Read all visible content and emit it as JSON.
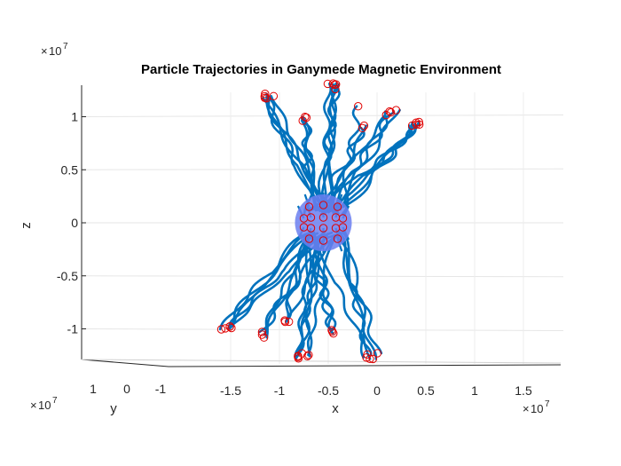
{
  "chart_data": {
    "type": "line",
    "title": "Particle Trajectories in Ganymede Magnetic Environment",
    "xlabel": "x",
    "ylabel": "y",
    "zlabel": "z",
    "view": "3-D, nearly side-on",
    "scale_exponents": {
      "x": "10",
      "x_power": "7",
      "y": "10",
      "y_power": "7",
      "z": "10",
      "z_power": "7"
    },
    "scale_prefix": "×",
    "x_ticks": [
      "-1.5",
      "-1",
      "-0.5",
      "0",
      "0.5",
      "1",
      "1.5"
    ],
    "x_tick_values": [
      -1.5,
      -1,
      -0.5,
      0,
      0.5,
      1,
      1.5
    ],
    "y_ticks": [
      "1",
      "0",
      "-1"
    ],
    "y_tick_values": [
      1,
      0,
      -1
    ],
    "z_ticks": [
      "1",
      "0.5",
      "0",
      "-0.5",
      "-1"
    ],
    "z_tick_values": [
      1,
      0.5,
      0,
      -0.5,
      -1
    ],
    "zlim": [
      -1.32,
      1.3
    ],
    "xlim": [
      -1.9,
      1.75
    ],
    "grid": true,
    "planet": {
      "center": [
        -0.55,
        0,
        0
      ],
      "radius": 0.26,
      "color": "#6b7ff0"
    },
    "trajectory_color": "#0072bd",
    "endpoint_color": "#e00000",
    "series": [
      {
        "upper": true,
        "x_end": -1.1,
        "z_end": 1.2,
        "count": 5
      },
      {
        "upper": true,
        "x_end": -0.75,
        "z_end": 0.97,
        "count": 3
      },
      {
        "upper": true,
        "x_end": -0.45,
        "z_end": 1.28,
        "count": 5
      },
      {
        "upper": true,
        "x_end": -0.25,
        "z_end": 1.1,
        "count": 1
      },
      {
        "upper": true,
        "x_end": -0.1,
        "z_end": 0.92,
        "count": 2
      },
      {
        "upper": true,
        "x_end": 0.15,
        "z_end": 1.05,
        "count": 4
      },
      {
        "upper": true,
        "x_end": 0.42,
        "z_end": 0.93,
        "count": 5
      },
      {
        "upper": false,
        "x_end": -1.55,
        "z_end": -0.98,
        "count": 5
      },
      {
        "upper": false,
        "x_end": -1.2,
        "z_end": -1.05,
        "count": 3
      },
      {
        "upper": false,
        "x_end": -0.95,
        "z_end": -0.95,
        "count": 3
      },
      {
        "upper": false,
        "x_end": -0.75,
        "z_end": -1.25,
        "count": 6
      },
      {
        "upper": false,
        "x_end": -0.45,
        "z_end": -1.02,
        "count": 3
      },
      {
        "upper": false,
        "x_end": -0.05,
        "z_end": -1.25,
        "count": 5
      }
    ]
  }
}
